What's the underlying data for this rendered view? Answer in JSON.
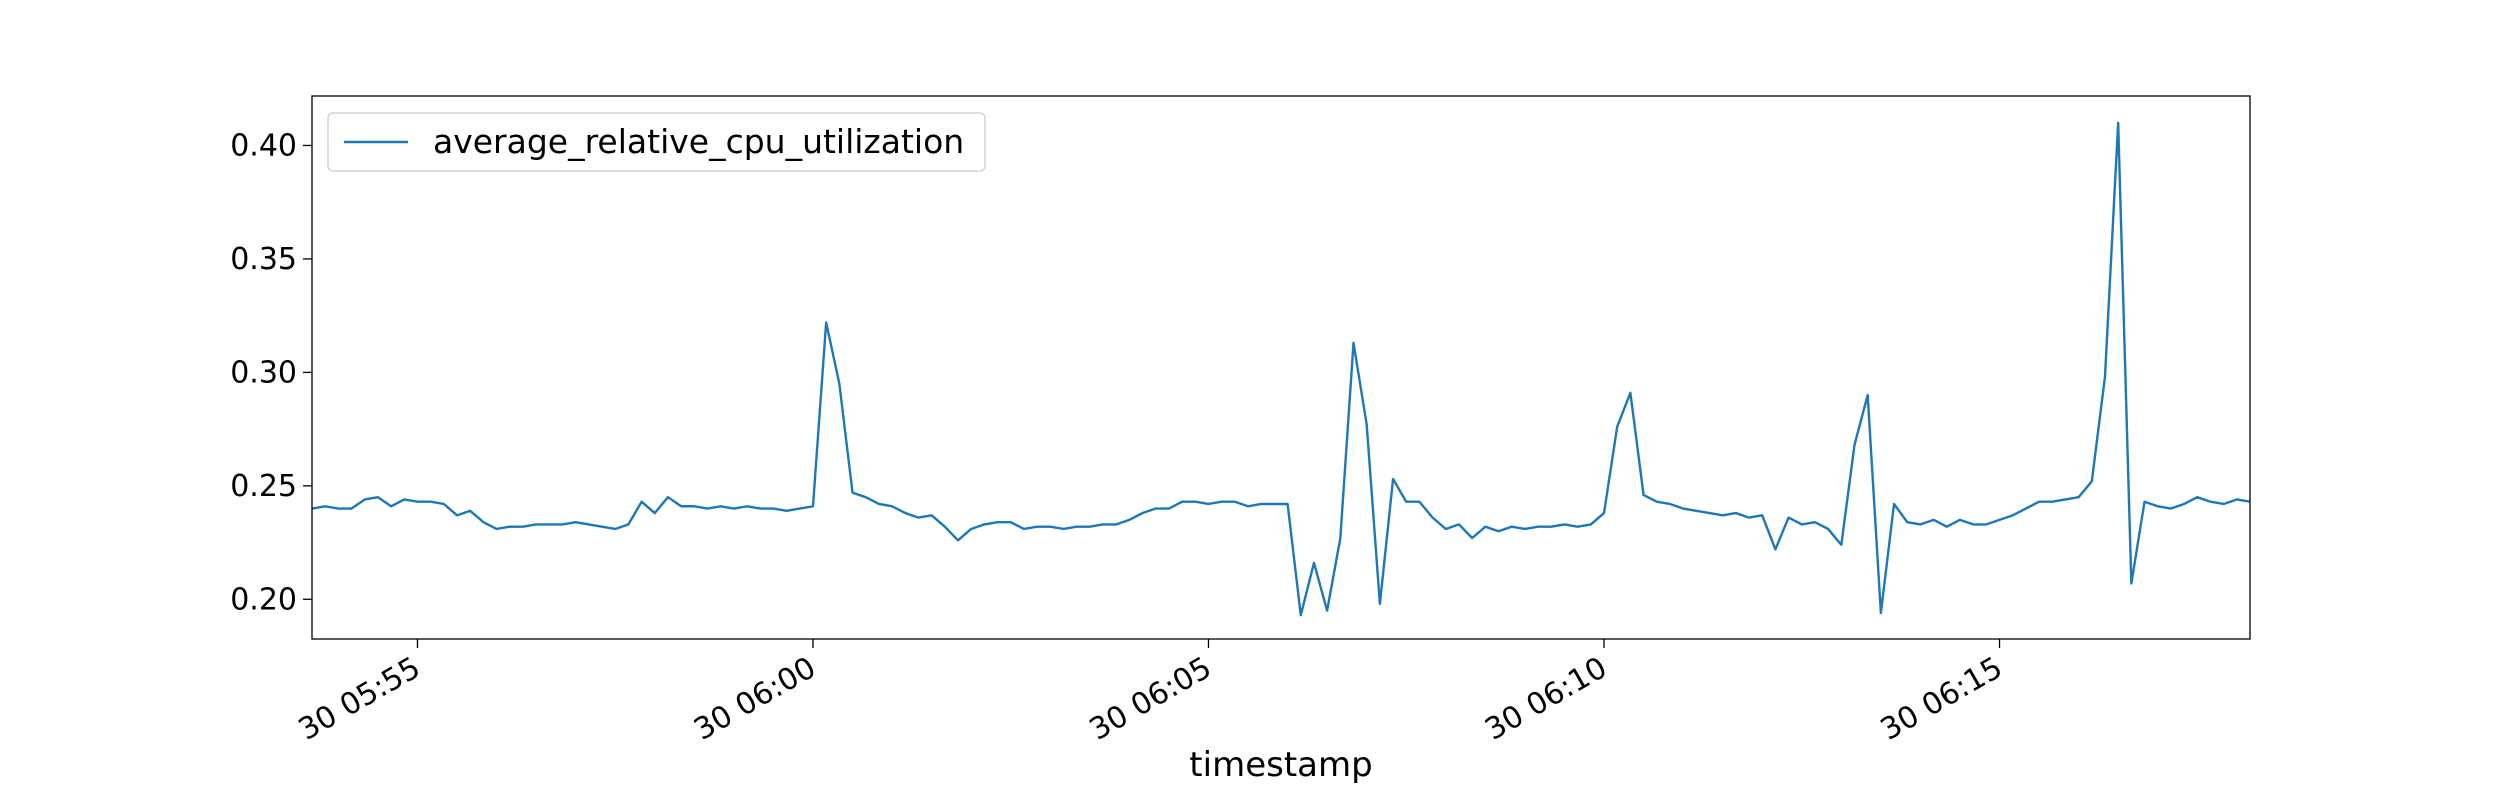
{
  "chart_data": {
    "type": "line",
    "xlabel": "timestamp",
    "legend": "upper left",
    "grid": false,
    "x": [
      "30 05:53:40",
      "30 05:53:50",
      "30 05:54:00",
      "30 05:54:10",
      "30 05:54:20",
      "30 05:54:30",
      "30 05:54:40",
      "30 05:54:50",
      "30 05:55:00",
      "30 05:55:10",
      "30 05:55:20",
      "30 05:55:30",
      "30 05:55:40",
      "30 05:55:50",
      "30 05:56:00",
      "30 05:56:10",
      "30 05:56:20",
      "30 05:56:30",
      "30 05:56:40",
      "30 05:56:50",
      "30 05:57:00",
      "30 05:57:10",
      "30 05:57:20",
      "30 05:57:30",
      "30 05:57:40",
      "30 05:57:50",
      "30 05:58:00",
      "30 05:58:10",
      "30 05:58:20",
      "30 05:58:30",
      "30 05:58:40",
      "30 05:58:50",
      "30 05:59:00",
      "30 05:59:10",
      "30 05:59:20",
      "30 05:59:30",
      "30 05:59:40",
      "30 05:59:50",
      "30 06:00:00",
      "30 06:00:10",
      "30 06:00:20",
      "30 06:00:30",
      "30 06:00:40",
      "30 06:00:50",
      "30 06:01:00",
      "30 06:01:10",
      "30 06:01:20",
      "30 06:01:30",
      "30 06:01:40",
      "30 06:01:50",
      "30 06:02:00",
      "30 06:02:10",
      "30 06:02:20",
      "30 06:02:30",
      "30 06:02:40",
      "30 06:02:50",
      "30 06:03:00",
      "30 06:03:10",
      "30 06:03:20",
      "30 06:03:30",
      "30 06:03:40",
      "30 06:03:50",
      "30 06:04:00",
      "30 06:04:10",
      "30 06:04:20",
      "30 06:04:30",
      "30 06:04:40",
      "30 06:04:50",
      "30 06:05:00",
      "30 06:05:10",
      "30 06:05:20",
      "30 06:05:30",
      "30 06:05:40",
      "30 06:05:50",
      "30 06:06:00",
      "30 06:06:10",
      "30 06:06:20",
      "30 06:06:30",
      "30 06:06:40",
      "30 06:06:50",
      "30 06:07:00",
      "30 06:07:10",
      "30 06:07:20",
      "30 06:07:30",
      "30 06:07:40",
      "30 06:07:50",
      "30 06:08:00",
      "30 06:08:10",
      "30 06:08:20",
      "30 06:08:30",
      "30 06:08:40",
      "30 06:08:50",
      "30 06:09:00",
      "30 06:09:10",
      "30 06:09:20",
      "30 06:09:30",
      "30 06:09:40",
      "30 06:09:50",
      "30 06:10:00",
      "30 06:10:10",
      "30 06:10:20",
      "30 06:10:30",
      "30 06:10:40",
      "30 06:10:50",
      "30 06:11:00",
      "30 06:11:10",
      "30 06:11:20",
      "30 06:11:30",
      "30 06:11:40",
      "30 06:11:50",
      "30 06:12:00",
      "30 06:12:10",
      "30 06:12:20",
      "30 06:12:30",
      "30 06:12:40",
      "30 06:12:50",
      "30 06:13:00",
      "30 06:13:10",
      "30 06:13:20",
      "30 06:13:30",
      "30 06:13:40",
      "30 06:13:50",
      "30 06:14:00",
      "30 06:14:10",
      "30 06:14:20",
      "30 06:14:30",
      "30 06:14:40",
      "30 06:14:50",
      "30 06:15:00",
      "30 06:15:10",
      "30 06:15:20",
      "30 06:15:30",
      "30 06:15:40",
      "30 06:15:50",
      "30 06:16:00",
      "30 06:16:10",
      "30 06:16:20",
      "30 06:16:30",
      "30 06:16:40",
      "30 06:16:50",
      "30 06:17:00",
      "30 06:17:10",
      "30 06:17:20",
      "30 06:17:30",
      "30 06:17:40",
      "30 06:17:50",
      "30 06:18:00",
      "30 06:18:10"
    ],
    "series": [
      {
        "name": "average_relative_cpu_utilization",
        "color": "#1f77b4",
        "values": [
          0.24,
          0.241,
          0.24,
          0.24,
          0.244,
          0.245,
          0.241,
          0.244,
          0.243,
          0.243,
          0.242,
          0.237,
          0.239,
          0.234,
          0.231,
          0.232,
          0.232,
          0.233,
          0.233,
          0.233,
          0.234,
          0.233,
          0.232,
          0.231,
          0.233,
          0.243,
          0.238,
          0.245,
          0.241,
          0.241,
          0.24,
          0.241,
          0.24,
          0.241,
          0.24,
          0.24,
          0.239,
          0.24,
          0.241,
          0.322,
          0.295,
          0.247,
          0.245,
          0.242,
          0.241,
          0.238,
          0.236,
          0.237,
          0.232,
          0.226,
          0.231,
          0.233,
          0.234,
          0.234,
          0.231,
          0.232,
          0.232,
          0.231,
          0.232,
          0.232,
          0.233,
          0.233,
          0.235,
          0.238,
          0.24,
          0.24,
          0.243,
          0.243,
          0.242,
          0.243,
          0.243,
          0.241,
          0.242,
          0.242,
          0.242,
          0.193,
          0.216,
          0.195,
          0.227,
          0.313,
          0.277,
          0.198,
          0.253,
          0.243,
          0.243,
          0.236,
          0.231,
          0.233,
          0.227,
          0.232,
          0.23,
          0.232,
          0.231,
          0.232,
          0.232,
          0.233,
          0.232,
          0.233,
          0.238,
          0.276,
          0.291,
          0.246,
          0.243,
          0.242,
          0.24,
          0.239,
          0.238,
          0.237,
          0.238,
          0.236,
          0.237,
          0.222,
          0.236,
          0.233,
          0.234,
          0.231,
          0.224,
          0.268,
          0.29,
          0.194,
          0.242,
          0.234,
          0.233,
          0.235,
          0.232,
          0.235,
          0.233,
          0.233,
          0.235,
          0.237,
          0.24,
          0.243,
          0.243,
          0.244,
          0.245,
          0.252,
          0.298,
          0.41,
          0.207,
          0.243,
          0.241,
          0.24,
          0.242,
          0.245,
          0.243,
          0.242,
          0.244,
          0.243
        ]
      }
    ],
    "xlim": [
      "30 05:53:40",
      "30 06:18:10"
    ],
    "xticks": [
      {
        "value": "30 05:55:00",
        "label": "30 05:55"
      },
      {
        "value": "30 06:00:00",
        "label": "30 06:00"
      },
      {
        "value": "30 06:05:00",
        "label": "30 06:05"
      },
      {
        "value": "30 06:10:00",
        "label": "30 06:10"
      },
      {
        "value": "30 06:15:00",
        "label": "30 06:15"
      }
    ],
    "ylim": [
      0.1825,
      0.4218
    ],
    "yticks": [
      {
        "value": 0.2,
        "label": "0.20"
      },
      0.25,
      {
        "value": 0.3,
        "label": "0.30"
      },
      0.35,
      {
        "value": 0.4,
        "label": "0.40"
      }
    ]
  }
}
